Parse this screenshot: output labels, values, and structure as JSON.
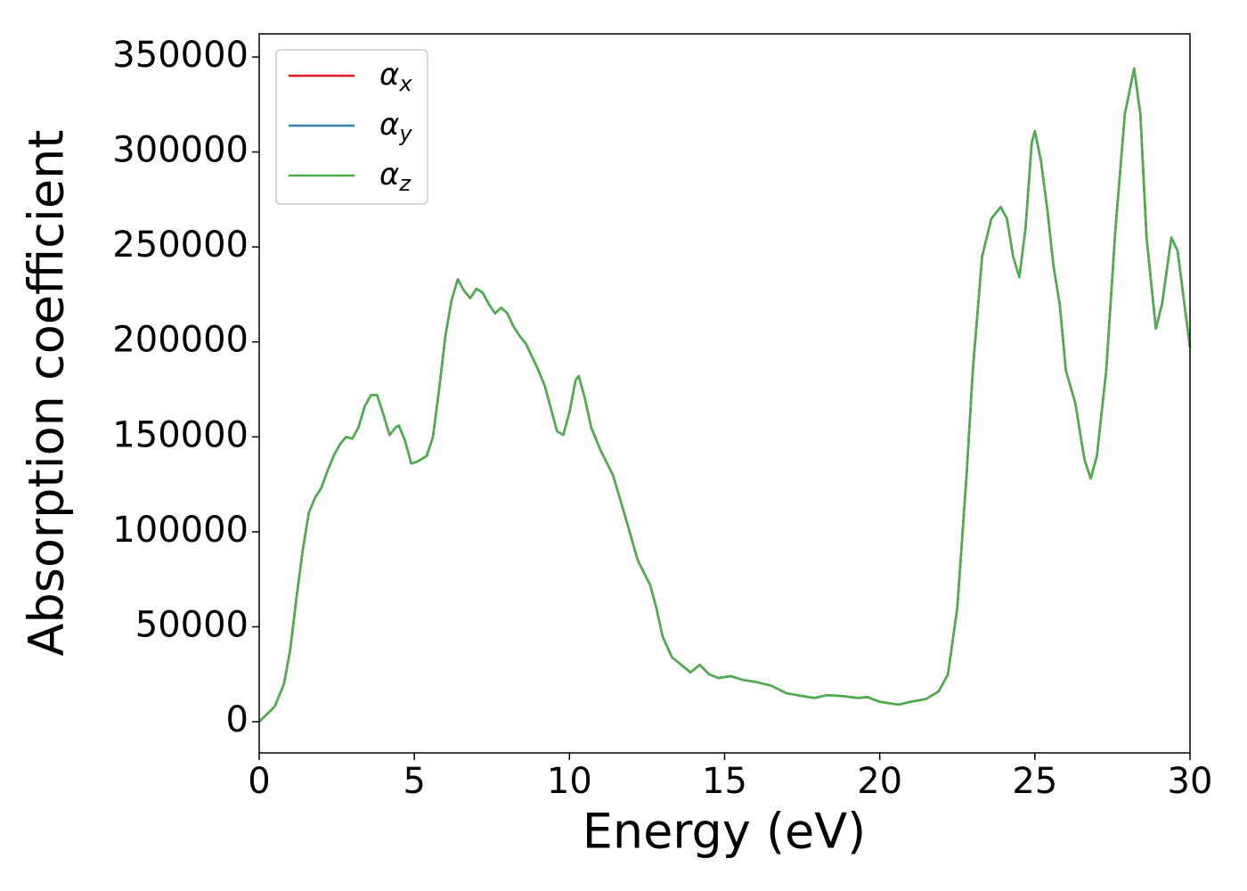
{
  "chart_data": {
    "type": "line",
    "xlabel": "Energy (eV)",
    "ylabel": "Absorption coefficient",
    "x": [
      0,
      0.5,
      0.8,
      1.0,
      1.2,
      1.4,
      1.6,
      1.8,
      2.0,
      2.2,
      2.4,
      2.6,
      2.8,
      3.0,
      3.2,
      3.4,
      3.6,
      3.8,
      4.0,
      4.2,
      4.4,
      4.5,
      4.7,
      4.9,
      5.1,
      5.4,
      5.6,
      5.8,
      6.0,
      6.2,
      6.4,
      6.6,
      6.8,
      7.0,
      7.2,
      7.4,
      7.6,
      7.8,
      8.0,
      8.2,
      8.4,
      8.6,
      8.8,
      9.0,
      9.2,
      9.4,
      9.6,
      9.8,
      10.0,
      10.2,
      10.3,
      10.5,
      10.7,
      11.0,
      11.4,
      11.8,
      12.2,
      12.6,
      12.8,
      13.0,
      13.3,
      13.6,
      13.9,
      14.2,
      14.5,
      14.8,
      15.2,
      15.6,
      16.0,
      16.5,
      17.0,
      17.5,
      17.9,
      18.3,
      18.8,
      19.3,
      19.6,
      20.0,
      20.6,
      21.0,
      21.5,
      21.9,
      22.2,
      22.5,
      22.8,
      23.0,
      23.3,
      23.6,
      23.9,
      24.1,
      24.3,
      24.5,
      24.7,
      24.9,
      25.0,
      25.2,
      25.4,
      25.6,
      25.8,
      26.0,
      26.3,
      26.6,
      26.8,
      27.0,
      27.3,
      27.6,
      27.9,
      28.2,
      28.4,
      28.6,
      28.9,
      29.1,
      29.4,
      29.6,
      30.0
    ],
    "series": [
      {
        "name": "αx",
        "color": "#e41a1c",
        "values": [
          0,
          8000,
          20000,
          38000,
          65000,
          90000,
          110000,
          118000,
          123000,
          132000,
          140000,
          146000,
          150000,
          149000,
          155000,
          166000,
          172000,
          172000,
          162000,
          151000,
          155000,
          156000,
          148000,
          136000,
          137000,
          140000,
          150000,
          175000,
          203000,
          222000,
          233000,
          227000,
          223000,
          228000,
          226000,
          220000,
          215000,
          218000,
          215000,
          208000,
          203000,
          199000,
          192000,
          185000,
          177000,
          165000,
          153000,
          151000,
          163000,
          180000,
          182000,
          170000,
          155000,
          143000,
          130000,
          108000,
          85000,
          72000,
          60000,
          45000,
          34000,
          30000,
          26000,
          30000,
          25000,
          23000,
          24000,
          22000,
          21000,
          19000,
          15000,
          13500,
          12500,
          14000,
          13500,
          12500,
          13000,
          10500,
          9000,
          10500,
          12000,
          16000,
          25000,
          60000,
          130000,
          185000,
          245000,
          265000,
          271000,
          265000,
          245000,
          234000,
          260000,
          305000,
          311000,
          295000,
          270000,
          240000,
          220000,
          185000,
          168000,
          138000,
          128000,
          140000,
          185000,
          260000,
          320000,
          344000,
          320000,
          255000,
          207000,
          220000,
          255000,
          248000,
          197000
        ]
      },
      {
        "name": "αy",
        "color": "#377eb8",
        "values": [
          0,
          8000,
          20000,
          38000,
          65000,
          90000,
          110000,
          118000,
          123000,
          132000,
          140000,
          146000,
          150000,
          149000,
          155000,
          166000,
          172000,
          172000,
          162000,
          151000,
          155000,
          156000,
          148000,
          136000,
          137000,
          140000,
          150000,
          175000,
          203000,
          222000,
          233000,
          227000,
          223000,
          228000,
          226000,
          220000,
          215000,
          218000,
          215000,
          208000,
          203000,
          199000,
          192000,
          185000,
          177000,
          165000,
          153000,
          151000,
          163000,
          180000,
          182000,
          170000,
          155000,
          143000,
          130000,
          108000,
          85000,
          72000,
          60000,
          45000,
          34000,
          30000,
          26000,
          30000,
          25000,
          23000,
          24000,
          22000,
          21000,
          19000,
          15000,
          13500,
          12500,
          14000,
          13500,
          12500,
          13000,
          10500,
          9000,
          10500,
          12000,
          16000,
          25000,
          60000,
          130000,
          185000,
          245000,
          265000,
          271000,
          265000,
          245000,
          234000,
          260000,
          305000,
          311000,
          295000,
          270000,
          240000,
          220000,
          185000,
          168000,
          138000,
          128000,
          140000,
          185000,
          260000,
          320000,
          344000,
          320000,
          255000,
          207000,
          220000,
          255000,
          248000,
          197000
        ]
      },
      {
        "name": "αz",
        "color": "#4daf4a",
        "values": [
          0,
          8000,
          20000,
          38000,
          65000,
          90000,
          110000,
          118000,
          123000,
          132000,
          140000,
          146000,
          150000,
          149000,
          155000,
          166000,
          172000,
          172000,
          162000,
          151000,
          155000,
          156000,
          148000,
          136000,
          137000,
          140000,
          150000,
          175000,
          203000,
          222000,
          233000,
          227000,
          223000,
          228000,
          226000,
          220000,
          215000,
          218000,
          215000,
          208000,
          203000,
          199000,
          192000,
          185000,
          177000,
          165000,
          153000,
          151000,
          163000,
          180000,
          182000,
          170000,
          155000,
          143000,
          130000,
          108000,
          85000,
          72000,
          60000,
          45000,
          34000,
          30000,
          26000,
          30000,
          25000,
          23000,
          24000,
          22000,
          21000,
          19000,
          15000,
          13500,
          12500,
          14000,
          13500,
          12500,
          13000,
          10500,
          9000,
          10500,
          12000,
          16000,
          25000,
          60000,
          130000,
          185000,
          245000,
          265000,
          271000,
          265000,
          245000,
          234000,
          260000,
          305000,
          311000,
          295000,
          270000,
          240000,
          220000,
          185000,
          168000,
          138000,
          128000,
          140000,
          185000,
          260000,
          320000,
          344000,
          320000,
          255000,
          207000,
          220000,
          255000,
          248000,
          197000
        ]
      }
    ],
    "xlim": [
      0,
      30
    ],
    "xticks": [
      0,
      5,
      10,
      15,
      20,
      25,
      30
    ],
    "ylim": [
      -16400,
      362200
    ],
    "yticks": [
      0,
      50000,
      100000,
      150000,
      200000,
      250000,
      300000,
      350000
    ],
    "grid": false,
    "legend": "upper left"
  }
}
